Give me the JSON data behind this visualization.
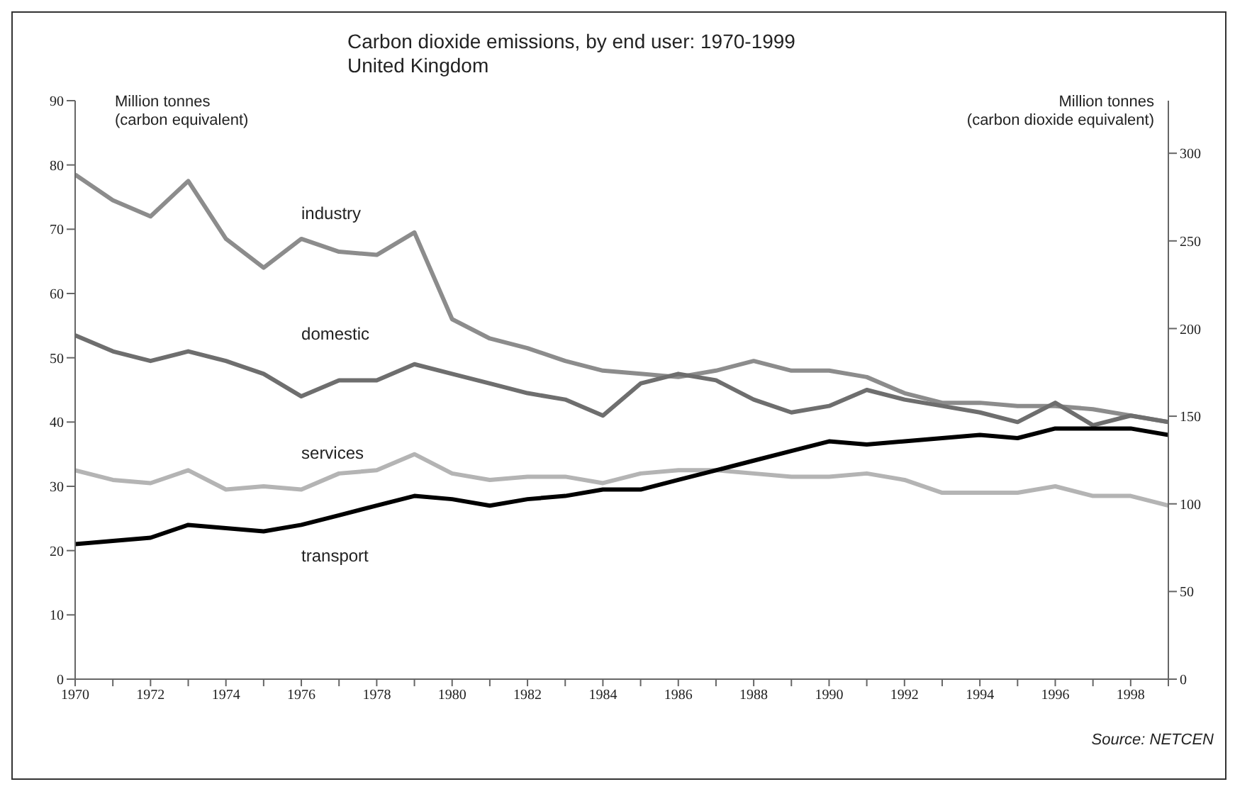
{
  "chart_data": {
    "type": "line",
    "title": "Carbon dioxide emissions, by end user: 1970-1999",
    "subtitle": "United Kingdom",
    "ylabel": "Million tonnes\n(carbon equivalent)",
    "y2label": "Million tonnes\n(carbon dioxide equivalent)",
    "annotations": [
      "Source: NETCEN"
    ],
    "x": [
      1970,
      1971,
      1972,
      1973,
      1974,
      1975,
      1976,
      1977,
      1978,
      1979,
      1980,
      1981,
      1982,
      1983,
      1984,
      1985,
      1986,
      1987,
      1988,
      1989,
      1990,
      1991,
      1992,
      1993,
      1994,
      1995,
      1996,
      1997,
      1998,
      1999
    ],
    "series": [
      {
        "name": "industry",
        "color": "#8c8c8c",
        "values": [
          78.5,
          74.5,
          72,
          77.5,
          68.5,
          64,
          68.5,
          66.5,
          66,
          69.5,
          56,
          53,
          51.5,
          49.5,
          48,
          47.5,
          47,
          48,
          49.5,
          48,
          48,
          47,
          44.5,
          43,
          43,
          42.5,
          42.5,
          42,
          41,
          40
        ]
      },
      {
        "name": "domestic",
        "color": "#6e6e6e",
        "values": [
          53.5,
          51,
          49.5,
          51,
          49.5,
          47.5,
          44,
          46.5,
          46.5,
          49,
          47.5,
          46,
          44.5,
          43.5,
          41,
          46,
          47.5,
          46.5,
          43.5,
          41.5,
          42.5,
          45,
          43.5,
          42.5,
          41.5,
          40,
          43,
          39.5,
          41,
          40
        ]
      },
      {
        "name": "services",
        "color": "#b4b4b4",
        "values": [
          32.5,
          31,
          30.5,
          32.5,
          29.5,
          30,
          29.5,
          32,
          32.5,
          35,
          32,
          31,
          31.5,
          31.5,
          30.5,
          32,
          32.5,
          32.5,
          32,
          31.5,
          31.5,
          32,
          31,
          29,
          29,
          29,
          30,
          28.5,
          28.5,
          27
        ]
      },
      {
        "name": "transport",
        "color": "#000000",
        "values": [
          21,
          21.5,
          22,
          24,
          23.5,
          23,
          24,
          25.5,
          27,
          28.5,
          28,
          27,
          28,
          28.5,
          29.5,
          29.5,
          31,
          32.5,
          34,
          35.5,
          37,
          36.5,
          37,
          37.5,
          38,
          37.5,
          39,
          39,
          39,
          38
        ]
      }
    ],
    "xlim": [
      1970,
      1999
    ],
    "xticks": [
      1970,
      {
        "value": 1971,
        "label": null
      },
      1972,
      {
        "value": 1973,
        "label": null
      },
      1974,
      {
        "value": 1975,
        "label": null
      },
      1976,
      {
        "value": 1977,
        "label": null
      },
      1978,
      {
        "value": 1979,
        "label": null
      },
      1980,
      {
        "value": 1981,
        "label": null
      },
      1982,
      {
        "value": 1983,
        "label": null
      },
      1984,
      {
        "value": 1985,
        "label": null
      },
      1986,
      {
        "value": 1987,
        "label": null
      },
      1988,
      {
        "value": 1989,
        "label": null
      },
      1990,
      {
        "value": 1991,
        "label": null
      },
      1992,
      {
        "value": 1993,
        "label": null
      },
      1994,
      {
        "value": 1995,
        "label": null
      },
      1996,
      {
        "value": 1997,
        "label": null
      },
      1998,
      {
        "value": 1999,
        "label": null
      }
    ],
    "ylim": [
      0,
      90
    ],
    "yticks": [
      0,
      10,
      20,
      30,
      40,
      50,
      60,
      70,
      80,
      90
    ],
    "y2lim": [
      0,
      330
    ],
    "y2ticks": [
      0,
      50,
      100,
      150,
      200,
      250,
      300
    ],
    "grid": false,
    "legend": false,
    "marker": "none",
    "line_style": "solid"
  }
}
